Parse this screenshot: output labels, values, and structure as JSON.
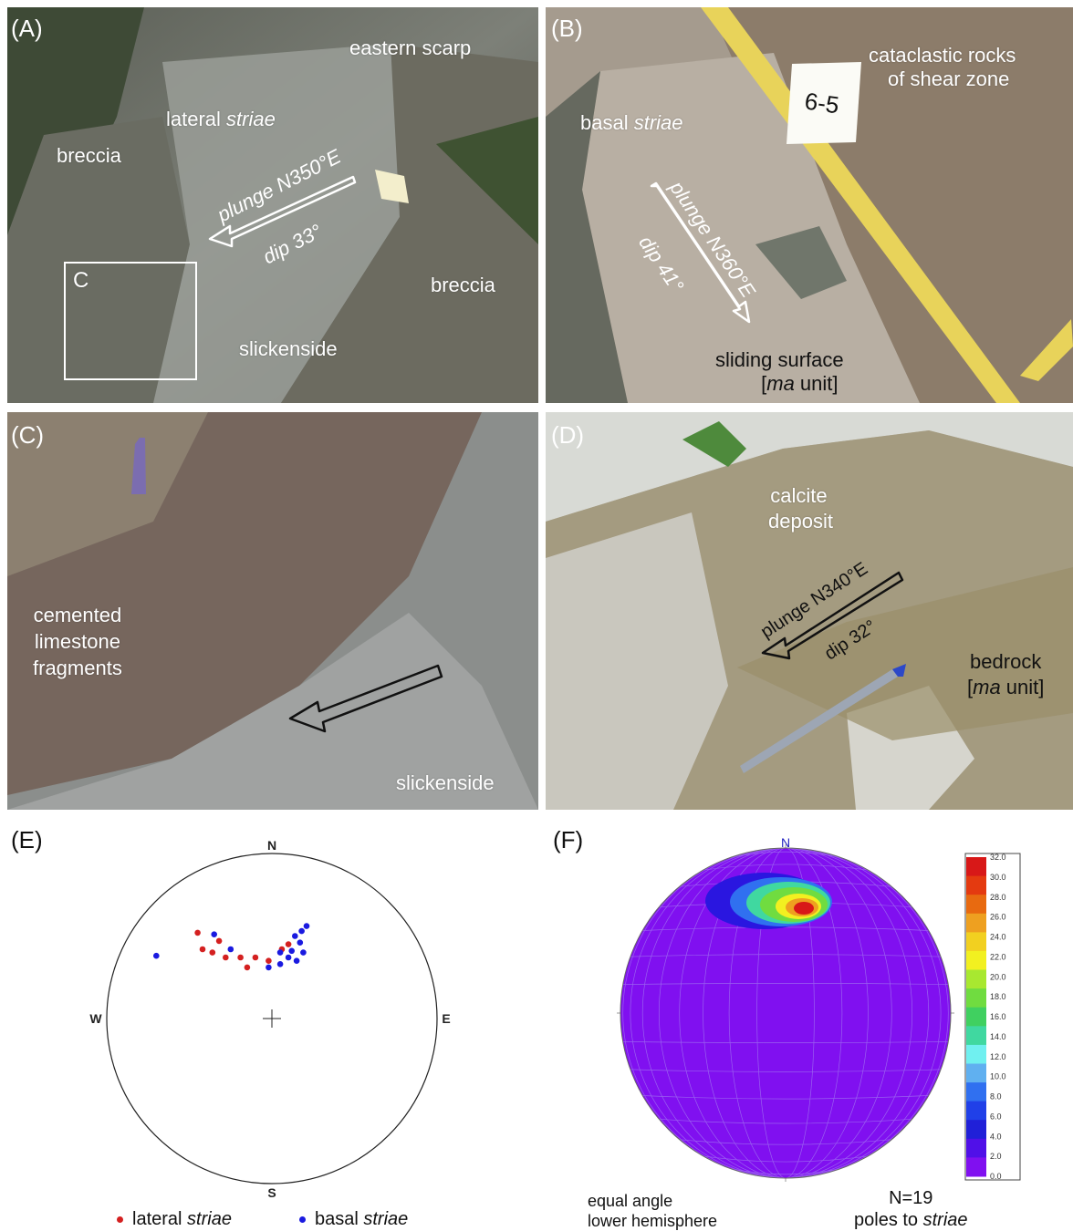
{
  "panelA": {
    "label": "(A)",
    "eastern_scarp": "eastern scarp",
    "lateral": "lateral ",
    "lateral_em": "striae",
    "breccia_left": "breccia",
    "breccia_right": "breccia",
    "plunge": "plunge N350°E",
    "dip": "dip 33°",
    "box": "C",
    "slickenside": "slickenside"
  },
  "panelB": {
    "label": "(B)",
    "cataclastic1": "cataclastic rocks",
    "cataclastic2": "of shear zone",
    "basal": "basal ",
    "basal_em": "striae",
    "tag": "6-5",
    "plunge": "plunge N360°E",
    "dip": "dip 41°",
    "sliding1": "sliding surface",
    "sliding2_open": "[",
    "sliding2_em": "ma",
    "sliding2_close": " unit]"
  },
  "panelC": {
    "label": "(C)",
    "cemented1": "cemented",
    "cemented2": "limestone",
    "cemented3": "fragments",
    "slickenside": "slickenside"
  },
  "panelD": {
    "label": "(D)",
    "calcite1": "calcite",
    "calcite2": "deposit",
    "plunge": "plunge N340°E",
    "dip": "dip 32°",
    "bedrock1": "bedrock",
    "bedrock2_open": "[",
    "bedrock2_em": "ma",
    "bedrock2_close": " unit]"
  },
  "panelE": {
    "label": "(E)",
    "north": "N",
    "south": "S",
    "west": "W",
    "east": "E",
    "legend_lateral": "lateral ",
    "legend_lateral_em": "striae",
    "legend_basal": "basal ",
    "legend_basal_em": "striae",
    "colors": {
      "lateral": "#d42020",
      "basal": "#1a1ae0"
    }
  },
  "panelF": {
    "label": "(F)",
    "north": "N",
    "caption1": "equal angle",
    "caption2": "lower hemisphere",
    "n": "N=19",
    "poles": "poles to ",
    "poles_em": "striae",
    "scale_labels": [
      "32.0",
      "30.0",
      "28.0",
      "26.0",
      "24.0",
      "22.0",
      "20.0",
      "18.0",
      "16.0",
      "14.0",
      "12.0",
      "10.0",
      "8.0",
      "6.0",
      "4.0",
      "2.0",
      "0.0"
    ],
    "scale_colors": [
      "#d81818",
      "#e43a10",
      "#e86a10",
      "#eea020",
      "#f2d020",
      "#f2f020",
      "#a8e830",
      "#70dc40",
      "#40d060",
      "#40d8a0",
      "#70f0f0",
      "#60b0f0",
      "#3070f0",
      "#2040e8",
      "#2020d8",
      "#5010e8",
      "#8010f0"
    ]
  },
  "chart_data": {
    "type": "scatter",
    "plot": "stereonet (E)",
    "series": [
      {
        "name": "lateral striae",
        "color": "#d42020",
        "points": [
          [
            -0.45,
            -0.52
          ],
          [
            -0.32,
            -0.47
          ],
          [
            -0.42,
            -0.42
          ],
          [
            -0.36,
            -0.4
          ],
          [
            -0.28,
            -0.37
          ],
          [
            -0.19,
            -0.37
          ],
          [
            -0.15,
            -0.31
          ],
          [
            -0.1,
            -0.37
          ],
          [
            0.1,
            -0.45
          ],
          [
            -0.02,
            -0.35
          ],
          [
            0.06,
            -0.42
          ]
        ]
      },
      {
        "name": "basal striae",
        "color": "#1a1ae0",
        "points": [
          [
            -0.7,
            -0.38
          ],
          [
            -0.35,
            -0.51
          ],
          [
            -0.25,
            -0.42
          ],
          [
            0.14,
            -0.5
          ],
          [
            0.18,
            -0.53
          ],
          [
            0.21,
            -0.56
          ],
          [
            0.17,
            -0.46
          ],
          [
            0.12,
            -0.41
          ],
          [
            0.1,
            -0.37
          ],
          [
            0.19,
            -0.4
          ],
          [
            0.05,
            -0.4
          ],
          [
            0.15,
            -0.35
          ],
          [
            0.05,
            -0.33
          ],
          [
            -0.02,
            -0.31
          ]
        ]
      }
    ]
  }
}
